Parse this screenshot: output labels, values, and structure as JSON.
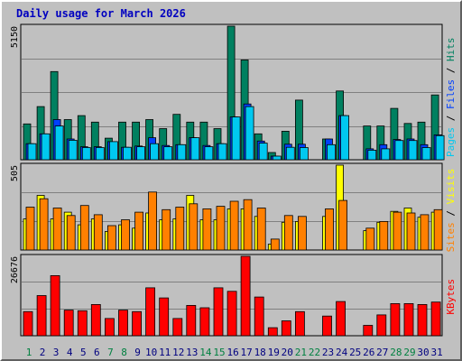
{
  "colors": {
    "background": "#c0c0c0",
    "pages": "#00c8f0",
    "files": "#0040ff",
    "hits": "#008060",
    "visits": "#ffff00",
    "sites": "#ff8000",
    "kbytes": "#ff0000",
    "title_text": "#0000c0",
    "weekday_text": "#000080",
    "weekend_text": "#008040"
  },
  "chart_data": {
    "type": "bar",
    "title": "Daily usage for March 2026",
    "grid": true,
    "x": {
      "days": [
        "1",
        "2",
        "3",
        "4",
        "5",
        "6",
        "7",
        "8",
        "9",
        "10",
        "11",
        "12",
        "13",
        "14",
        "15",
        "16",
        "17",
        "18",
        "19",
        "20",
        "21",
        "22",
        "23",
        "24",
        "25",
        "26",
        "27",
        "28",
        "29",
        "30",
        "31"
      ],
      "weekend_days": [
        "1",
        "7",
        "8",
        "14",
        "15",
        "21",
        "22",
        "28",
        "29"
      ]
    },
    "panels": [
      {
        "name": "hits-files-pages",
        "ymax_label": "5150",
        "ymax": 5150,
        "legend": [
          {
            "text": "Pages",
            "color": "#00c8f0"
          },
          {
            "text": " / ",
            "color": "#000000"
          },
          {
            "text": "Files",
            "color": "#0040ff"
          },
          {
            "text": " / ",
            "color": "#000000"
          },
          {
            "text": "Hits",
            "color": "#008060"
          }
        ],
        "series": [
          {
            "key": "hits",
            "color": "#008060",
            "values": [
              1380,
              2050,
              3400,
              1550,
              1700,
              1450,
              830,
              1450,
              1450,
              1550,
              1200,
              1750,
              1450,
              1450,
              1200,
              5150,
              3850,
              1000,
              280,
              1100,
              2300,
              0,
              800,
              2650,
              0,
              1300,
              1300,
              1980,
              1400,
              1450,
              2500
            ]
          },
          {
            "key": "files",
            "color": "#0040ff",
            "values": [
              620,
              1000,
              1550,
              800,
              500,
              500,
              700,
              480,
              530,
              850,
              550,
              580,
              850,
              550,
              620,
              1650,
              2150,
              720,
              140,
              600,
              600,
              0,
              800,
              1700,
              0,
              420,
              580,
              780,
              800,
              580,
              960
            ]
          },
          {
            "key": "pages",
            "color": "#00c8f0",
            "values": [
              620,
              1000,
              1300,
              750,
              470,
              470,
              700,
              480,
              500,
              620,
              500,
              580,
              850,
              500,
              620,
              1650,
              2050,
              640,
              140,
              480,
              470,
              0,
              580,
              1700,
              0,
              370,
              420,
              740,
              740,
              470,
              930
            ]
          }
        ]
      },
      {
        "name": "visits-sites",
        "ymax_label": "505",
        "ymax": 505,
        "legend": [
          {
            "text": "Sites",
            "color": "#ff8000"
          },
          {
            "text": " / ",
            "color": "#000000"
          },
          {
            "text": "Visits",
            "color": "#ffff00"
          }
        ],
        "series": [
          {
            "key": "visits",
            "color": "#ffff00",
            "values": [
              185,
              325,
              185,
              225,
              150,
              185,
              110,
              150,
              130,
              220,
              180,
              185,
              325,
              180,
              180,
              245,
              245,
              200,
              35,
              165,
              170,
              0,
              200,
              505,
              0,
              115,
              165,
              230,
              250,
              195,
              225
            ]
          },
          {
            "key": "sites",
            "color": "#ff8000",
            "values": [
              255,
              305,
              250,
              205,
              265,
              210,
              145,
              180,
              225,
              345,
              240,
              255,
              275,
              245,
              260,
              290,
              300,
              250,
              65,
              205,
              200,
              0,
              245,
              295,
              0,
              130,
              170,
              225,
              220,
              210,
              240
            ]
          }
        ]
      },
      {
        "name": "kbytes",
        "ymax_label": "26676",
        "ymax": 26676,
        "legend": [
          {
            "text": "KBytes",
            "color": "#ff0000"
          }
        ],
        "series": [
          {
            "key": "kbytes",
            "color": "#ff0000",
            "values": [
              8100,
              13500,
              20200,
              8600,
              8400,
              10500,
              5800,
              8600,
              8100,
              16100,
              12700,
              5800,
              10200,
              9400,
              16100,
              14900,
              26676,
              13000,
              2700,
              5000,
              8100,
              0,
              6600,
              11500,
              0,
              3500,
              7000,
              10800,
              10800,
              10500,
              11300
            ]
          }
        ]
      }
    ]
  }
}
